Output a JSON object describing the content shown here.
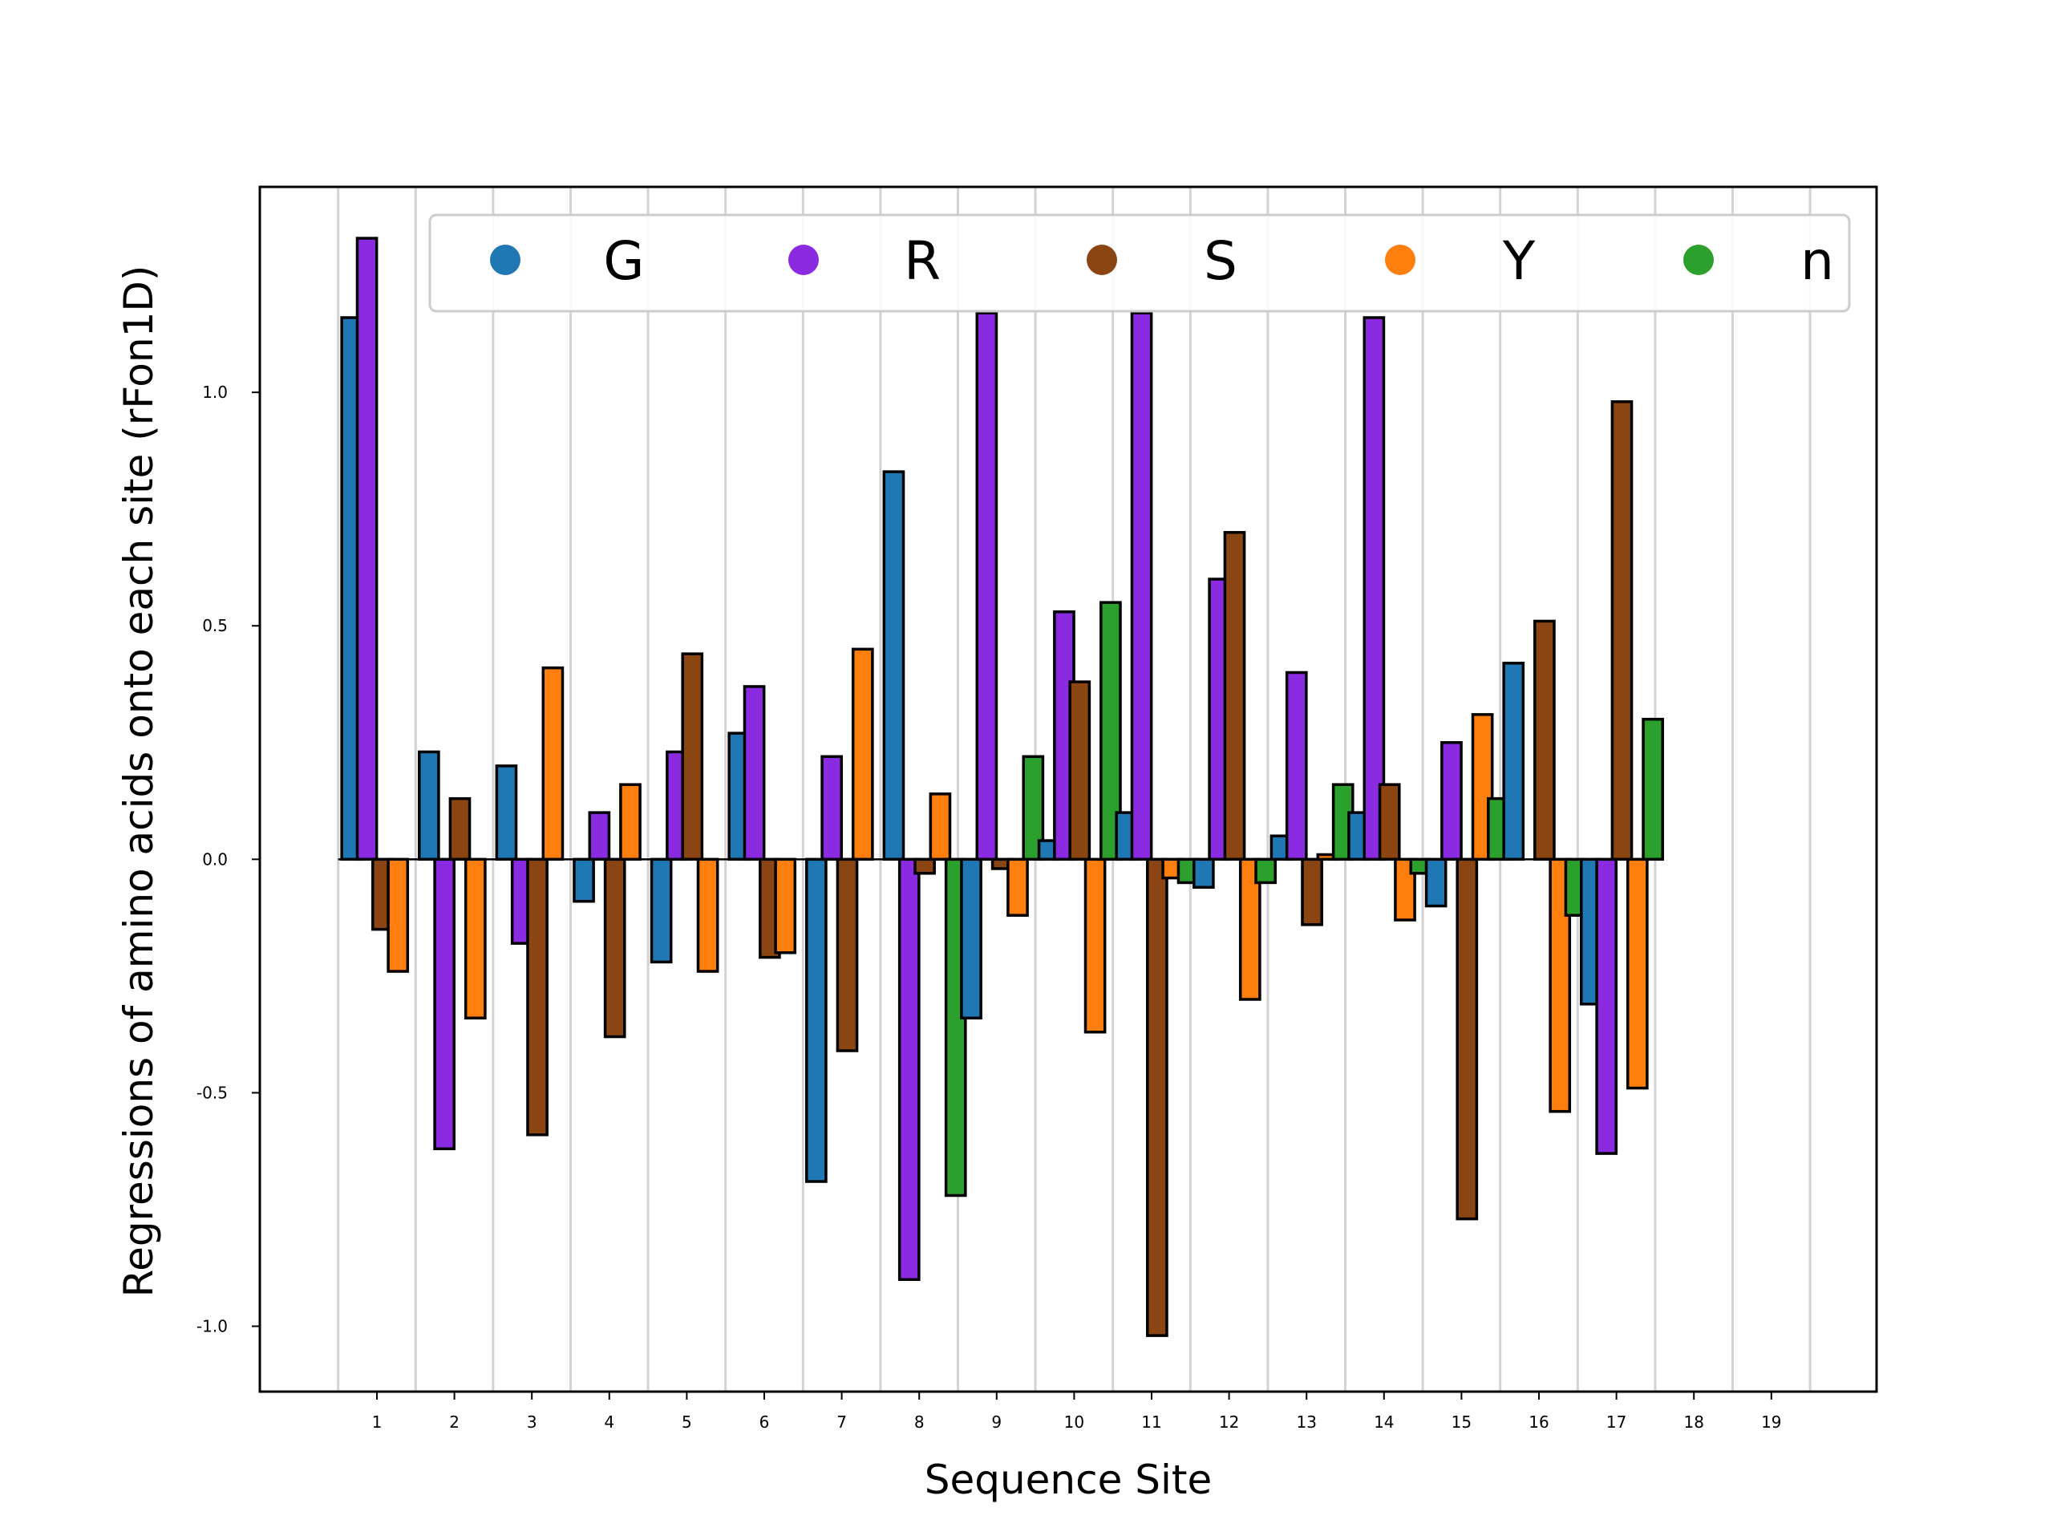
{
  "chart_data": {
    "type": "bar",
    "title": "",
    "xlabel": "Sequence Site",
    "ylabel": "Regressions of amino acids onto each site (rFon1D)",
    "x": [
      1,
      2,
      3,
      4,
      5,
      6,
      7,
      8,
      9,
      10,
      11,
      12,
      13,
      14,
      15,
      16,
      17,
      18,
      19
    ],
    "xticks": [
      "1",
      "2",
      "3",
      "4",
      "5",
      "6",
      "7",
      "8",
      "9",
      "10",
      "11",
      "12",
      "13",
      "14",
      "15",
      "16",
      "17",
      "18",
      "19"
    ],
    "yticks": [
      "-1.0",
      "-0.5",
      "0.0",
      "0.5",
      "1.0"
    ],
    "ylim": [
      -1.14,
      1.44
    ],
    "grid": "vertical",
    "legend_position": "top",
    "series": [
      {
        "name": "G",
        "color": "#1f77b4",
        "values": [
          1.16,
          0.23,
          0.2,
          -0.09,
          -0.22,
          0.27,
          -0.69,
          0.83,
          -0.34,
          0.04,
          0.1,
          -0.06,
          0.05,
          0.1,
          -0.1,
          0.42,
          -0.31,
          null,
          null
        ]
      },
      {
        "name": "R",
        "color": "#8a2be2",
        "values": [
          1.33,
          -0.62,
          -0.18,
          0.1,
          0.23,
          0.37,
          0.22,
          -0.9,
          1.17,
          0.53,
          1.17,
          0.6,
          0.4,
          1.16,
          0.25,
          null,
          -0.63,
          null,
          null
        ]
      },
      {
        "name": "S",
        "color": "#8b4513",
        "values": [
          -0.15,
          0.13,
          -0.59,
          -0.38,
          0.44,
          -0.21,
          -0.41,
          -0.03,
          -0.02,
          0.38,
          -1.02,
          0.7,
          -0.14,
          0.16,
          -0.77,
          0.51,
          0.98,
          null,
          null
        ]
      },
      {
        "name": "Y",
        "color": "#ff7f0e",
        "values": [
          -0.24,
          -0.34,
          0.41,
          0.16,
          -0.24,
          -0.2,
          0.45,
          0.14,
          -0.12,
          -0.37,
          -0.04,
          -0.3,
          0.01,
          -0.13,
          0.31,
          -0.54,
          -0.49,
          null,
          null
        ]
      },
      {
        "name": "n",
        "color": "#2ca02c",
        "values": [
          null,
          null,
          null,
          null,
          null,
          null,
          null,
          -0.72,
          0.22,
          0.55,
          -0.05,
          -0.05,
          0.16,
          -0.03,
          0.13,
          -0.12,
          0.3,
          null,
          null
        ]
      }
    ]
  }
}
